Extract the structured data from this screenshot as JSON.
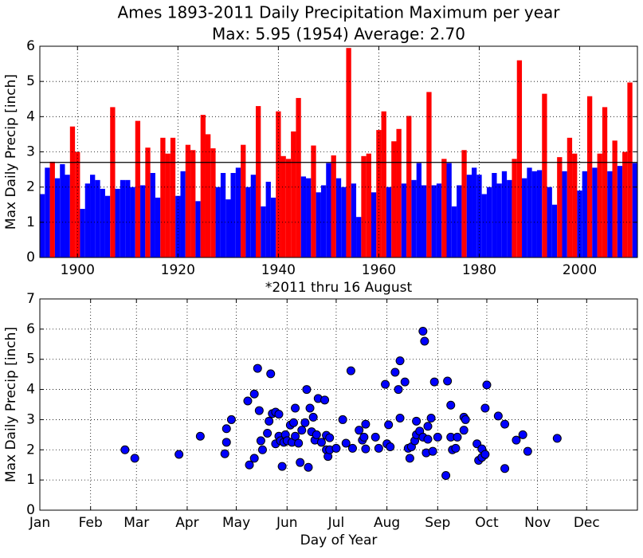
{
  "chart_data": [
    {
      "type": "bar",
      "title": "Ames 1893-2011 Daily Precipitation Maximum per year",
      "subtitle": "Max: 5.95 (1954) Average: 2.70",
      "ylabel": "Max Daily Precip [inch]",
      "xlabel": "*2011 thru 16 August",
      "x": [
        1893,
        1894,
        1895,
        1896,
        1897,
        1898,
        1899,
        1900,
        1901,
        1902,
        1903,
        1904,
        1905,
        1906,
        1907,
        1908,
        1909,
        1910,
        1911,
        1912,
        1913,
        1914,
        1915,
        1916,
        1917,
        1918,
        1919,
        1920,
        1921,
        1922,
        1923,
        1924,
        1925,
        1926,
        1927,
        1928,
        1929,
        1930,
        1931,
        1932,
        1933,
        1934,
        1935,
        1936,
        1937,
        1938,
        1939,
        1940,
        1941,
        1942,
        1943,
        1944,
        1945,
        1946,
        1947,
        1948,
        1949,
        1950,
        1951,
        1952,
        1953,
        1954,
        1955,
        1956,
        1957,
        1958,
        1959,
        1960,
        1961,
        1962,
        1963,
        1964,
        1965,
        1966,
        1967,
        1968,
        1969,
        1970,
        1971,
        1972,
        1973,
        1974,
        1975,
        1976,
        1977,
        1978,
        1979,
        1980,
        1981,
        1982,
        1983,
        1984,
        1985,
        1986,
        1987,
        1988,
        1989,
        1990,
        1991,
        1992,
        1993,
        1994,
        1995,
        1996,
        1997,
        1998,
        1999,
        2000,
        2001,
        2002,
        2003,
        2004,
        2005,
        2006,
        2007,
        2008,
        2009,
        2010,
        2011
      ],
      "values": [
        1.8,
        2.55,
        2.72,
        2.25,
        2.65,
        2.35,
        3.72,
        3.0,
        1.38,
        2.1,
        2.35,
        2.2,
        1.95,
        1.75,
        4.27,
        1.95,
        2.2,
        2.2,
        2.0,
        3.88,
        2.05,
        3.12,
        2.4,
        1.7,
        3.4,
        2.95,
        3.4,
        1.75,
        2.45,
        3.2,
        3.05,
        1.6,
        4.05,
        3.5,
        3.1,
        2.0,
        2.4,
        1.65,
        2.4,
        2.55,
        3.2,
        2.0,
        2.35,
        4.3,
        1.45,
        2.15,
        1.7,
        4.15,
        2.88,
        2.8,
        3.58,
        4.53,
        2.3,
        2.25,
        3.18,
        1.85,
        2.05,
        2.68,
        2.9,
        2.25,
        2.0,
        5.95,
        2.1,
        1.15,
        2.88,
        2.95,
        1.85,
        3.62,
        4.15,
        2.0,
        3.3,
        3.65,
        2.1,
        4.02,
        2.2,
        2.68,
        2.05,
        4.7,
        2.05,
        2.1,
        2.8,
        2.68,
        1.45,
        2.05,
        3.05,
        2.35,
        2.55,
        2.35,
        1.8,
        2.0,
        2.4,
        2.1,
        2.45,
        2.2,
        2.8,
        5.6,
        2.25,
        2.55,
        2.45,
        2.48,
        4.65,
        2.0,
        1.5,
        2.85,
        2.45,
        3.4,
        2.95,
        1.9,
        2.45,
        4.58,
        2.55,
        2.95,
        4.27,
        2.45,
        3.32,
        2.6,
        3.0,
        4.97,
        2.68
      ],
      "average_line": 2.7,
      "above_color": "#ff0000",
      "below_color": "#0000ff",
      "xlim": [
        1892.5,
        2011.5
      ],
      "ylim": [
        0,
        6
      ],
      "xticks": [
        1900,
        1920,
        1940,
        1960,
        1980,
        2000
      ],
      "yticks": [
        0,
        1,
        2,
        3,
        4,
        5,
        6
      ],
      "grid": true
    },
    {
      "type": "scatter",
      "ylabel": "Max Daily Precip [inch]",
      "xlabel": "Day of Year",
      "color": "#0000ff",
      "x": [
        53,
        59,
        86,
        99,
        114,
        115,
        115,
        118,
        129,
        128,
        132,
        132,
        134,
        135,
        136,
        137,
        140,
        141,
        142,
        143,
        145,
        145,
        147,
        147,
        148,
        149,
        150,
        151,
        152,
        154,
        155,
        156,
        157,
        157,
        159,
        160,
        161,
        163,
        164,
        165,
        166,
        167,
        168,
        169,
        170,
        171,
        173,
        175,
        176,
        176,
        177,
        178,
        178,
        182,
        186,
        188,
        191,
        192,
        196,
        198,
        199,
        200,
        200,
        206,
        208,
        212,
        213,
        214,
        215,
        218,
        220,
        221,
        221,
        224,
        226,
        227,
        228,
        230,
        231,
        231,
        233,
        235,
        235,
        236,
        237,
        238,
        238,
        240,
        241,
        242,
        244,
        249,
        250,
        252,
        252,
        253,
        255,
        256,
        260,
        261,
        260,
        268,
        269,
        271,
        271,
        273,
        273,
        274,
        281,
        285,
        285,
        292,
        296,
        299,
        317
      ],
      "values": [
        2.0,
        1.72,
        1.85,
        2.45,
        1.87,
        2.25,
        2.7,
        3.0,
        1.5,
        3.62,
        3.85,
        1.72,
        4.7,
        3.3,
        2.3,
        2.0,
        2.55,
        2.95,
        4.52,
        3.2,
        2.2,
        3.25,
        2.45,
        3.18,
        2.3,
        1.45,
        2.25,
        2.5,
        2.3,
        2.82,
        2.25,
        2.9,
        3.38,
        2.45,
        2.22,
        1.58,
        2.65,
        2.9,
        4.0,
        1.42,
        3.38,
        2.6,
        3.08,
        2.32,
        2.5,
        3.7,
        2.25,
        3.65,
        2.48,
        2.0,
        1.78,
        2.4,
        2.0,
        2.05,
        3.0,
        2.22,
        4.62,
        2.05,
        2.65,
        2.32,
        2.42,
        2.85,
        2.03,
        2.42,
        2.05,
        4.17,
        2.2,
        2.83,
        2.1,
        4.57,
        4.0,
        3.05,
        4.95,
        4.25,
        2.05,
        1.72,
        2.1,
        2.3,
        2.95,
        2.5,
        2.62,
        2.42,
        5.93,
        5.6,
        1.9,
        2.78,
        2.35,
        3.05,
        1.95,
        4.25,
        2.42,
        1.15,
        4.28,
        3.48,
        2.42,
        2.0,
        2.05,
        2.42,
        3.08,
        3.0,
        2.65,
        2.2,
        1.65,
        2.03,
        1.75,
        3.38,
        1.85,
        4.15,
        3.12,
        2.85,
        1.38,
        2.32,
        2.5,
        1.95,
        2.38
      ],
      "xlim": [
        1,
        366
      ],
      "ylim": [
        0,
        7
      ],
      "xticks": [
        {
          "value": 1,
          "label": "Jan"
        },
        {
          "value": 32,
          "label": "Feb"
        },
        {
          "value": 60,
          "label": "Mar"
        },
        {
          "value": 91,
          "label": "Apr"
        },
        {
          "value": 121,
          "label": "May"
        },
        {
          "value": 152,
          "label": "Jun"
        },
        {
          "value": 182,
          "label": "Jul"
        },
        {
          "value": 213,
          "label": "Aug"
        },
        {
          "value": 244,
          "label": "Sep"
        },
        {
          "value": 274,
          "label": "Oct"
        },
        {
          "value": 305,
          "label": "Nov"
        },
        {
          "value": 335,
          "label": "Dec"
        }
      ],
      "yticks": [
        0,
        1,
        2,
        3,
        4,
        5,
        6,
        7
      ],
      "grid": true
    }
  ]
}
